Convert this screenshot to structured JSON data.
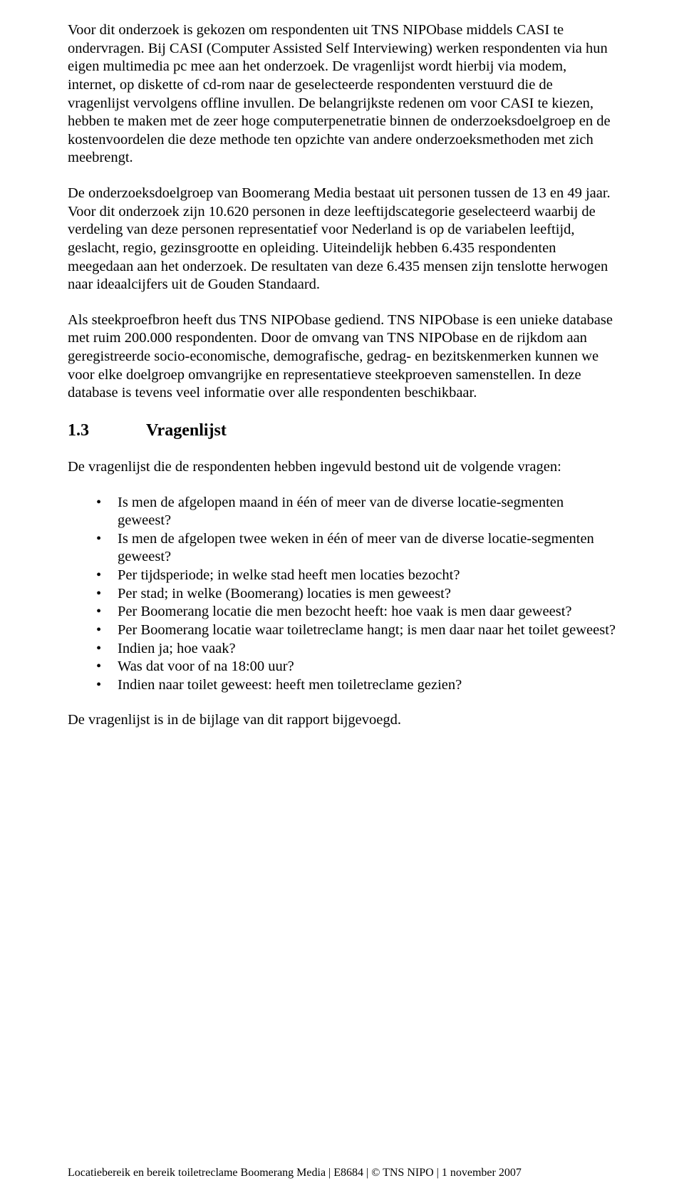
{
  "paragraphs": {
    "p1": "Voor dit onderzoek is gekozen om respondenten uit TNS NIPObase middels CASI te ondervragen. Bij CASI (Computer Assisted Self Interviewing) werken respondenten via hun eigen multimedia pc mee aan het onderzoek. De vragenlijst wordt hierbij via modem, internet, op diskette of cd-rom naar de geselecteerde respondenten verstuurd die de vragenlijst vervolgens offline invullen. De belangrijkste redenen om voor CASI te kiezen, hebben te maken met de zeer hoge computerpenetratie binnen de onderzoeksdoelgroep en de kostenvoordelen die deze methode ten opzichte van andere onderzoeksmethoden met zich meebrengt.",
    "p2": "De onderzoeksdoelgroep van Boomerang Media bestaat uit personen tussen de 13 en 49 jaar. Voor dit onderzoek zijn 10.620 personen in deze leeftijdscategorie geselecteerd waarbij de verdeling van deze personen representatief voor Nederland is op de variabelen leeftijd, geslacht, regio, gezinsgrootte en opleiding. Uiteindelijk hebben 6.435 respondenten meegedaan aan het onderzoek. De resultaten van deze 6.435 mensen zijn tenslotte herwogen naar ideaalcijfers uit de Gouden Standaard.",
    "p3": "Als steekproefbron heeft dus TNS NIPObase gediend. TNS NIPObase is een unieke database met ruim 200.000 respondenten. Door de omvang van TNS NIPObase en de rijkdom aan geregistreerde socio-economische, demografische, gedrag- en bezitskenmerken kunnen we voor elke doelgroep omvangrijke en representatieve steekproeven samenstellen. In deze database is tevens veel informatie over alle respondenten beschikbaar.",
    "p4": "De vragenlijst die de respondenten hebben ingevuld bestond uit de volgende vragen:",
    "p5": "De vragenlijst is in de bijlage van dit rapport bijgevoegd."
  },
  "heading": {
    "number": "1.3",
    "title": "Vragenlijst"
  },
  "bullets": [
    "Is men de afgelopen maand in één of meer van de diverse locatie-segmenten geweest?",
    "Is men de afgelopen twee weken in één of meer van de diverse locatie-segmenten geweest?",
    "Per tijdsperiode; in welke stad heeft men locaties bezocht?",
    "Per stad; in welke (Boomerang) locaties is men geweest?",
    "Per Boomerang locatie die men bezocht heeft: hoe vaak is men daar geweest?",
    "Per Boomerang locatie waar toiletreclame hangt; is men daar naar het toilet geweest?",
    "Indien ja; hoe vaak?",
    "Was dat voor of na 18:00 uur?",
    "Indien naar toilet geweest: heeft men toiletreclame gezien?"
  ],
  "footer": "Locatiebereik en bereik toiletreclame Boomerang Media | E8684 | © TNS NIPO | 1 november 2007"
}
